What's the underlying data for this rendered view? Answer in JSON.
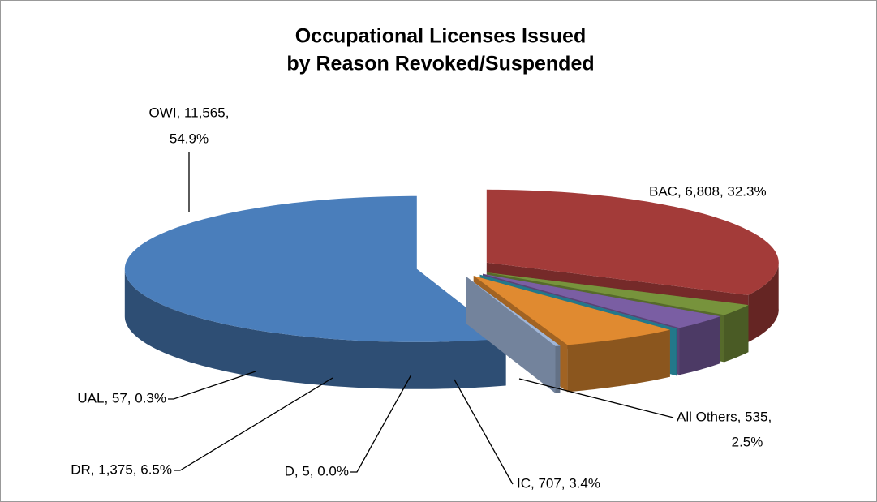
{
  "chart_data": {
    "type": "pie3d",
    "title": [
      "Occupational Licenses Issued",
      "by Reason Revoked/Suspended"
    ],
    "values": [
      6808,
      535,
      707,
      5,
      1375,
      57,
      11565
    ],
    "value_labels": [
      "BAC, 6,808, 32.3%",
      [
        "All Others, 535,",
        "2.5%"
      ],
      "IC, 707, 3.4%",
      "D, 5, 0.0%",
      "DR, 1,375, 6.5%",
      "UAL, 57, 0.3%",
      [
        "OWI, 11,565,",
        "54.9%"
      ]
    ],
    "colors": [
      "#a33b39",
      "#77933c",
      "#7a5ea3",
      "#31a6bf",
      "#e08a30",
      "#a0b6d8",
      "#4a7ebb"
    ],
    "exploded": true
  }
}
